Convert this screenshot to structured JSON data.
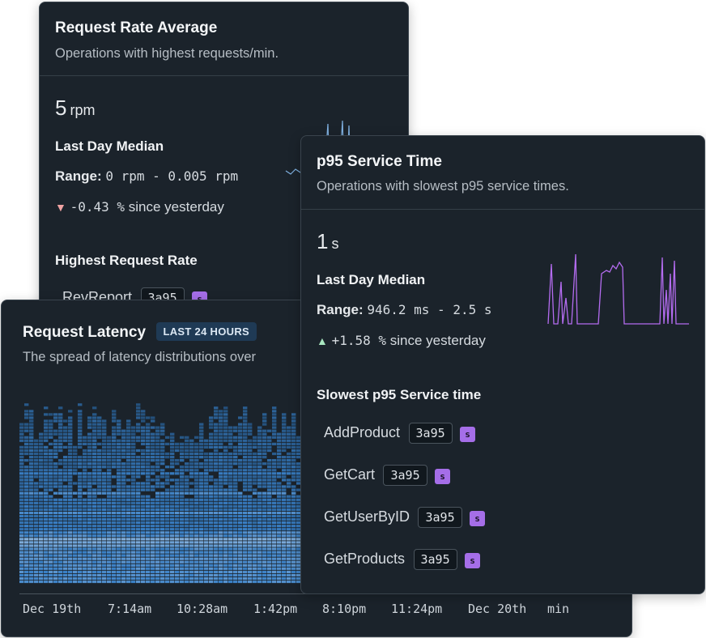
{
  "request_rate_card": {
    "title": "Request Rate Average",
    "subtitle": "Operations with highest requests/min.",
    "value": "5",
    "unit": "rpm",
    "median_label": "Last Day Median",
    "range_label": "Range:",
    "range_value": "0 rpm - 0.005 rpm",
    "delta_value": "-0.43 %",
    "delta_suffix": "since yesterday",
    "list_title": "Highest Request Rate",
    "items": [
      {
        "name": "RevReport",
        "hash": "3a95",
        "badge": "s"
      }
    ]
  },
  "latency_card": {
    "title": "Request Latency",
    "pill": "LAST 24 HOURS",
    "subtitle": "The spread of latency distributions over",
    "x_ticks": [
      "Dec 19th",
      "7:14am",
      "10:28am",
      "1:42pm",
      "8:10pm",
      "11:24pm",
      "Dec 20th",
      "min"
    ]
  },
  "p95_card": {
    "title": "p95 Service Time",
    "subtitle": "Operations with slowest p95 service times.",
    "value": "1",
    "unit": "s",
    "median_label": "Last Day Median",
    "range_label": "Range:",
    "range_value": "946.2 ms - 2.5 s",
    "delta_value": "+1.58 %",
    "delta_suffix": "since yesterday",
    "list_title": "Slowest p95 Service time",
    "items": [
      {
        "name": "AddProduct",
        "hash": "3a95",
        "badge": "s"
      },
      {
        "name": "GetCart",
        "hash": "3a95",
        "badge": "s"
      },
      {
        "name": "GetUserByID",
        "hash": "3a95",
        "badge": "s"
      },
      {
        "name": "GetProducts",
        "hash": "3a95",
        "badge": "s"
      }
    ]
  },
  "colors": {
    "card_bg": "#1b232b",
    "sparkline": "#b46cf0",
    "down": "#f0a3a3",
    "up": "#a8e6c0",
    "badge": "#a56ee8",
    "heat_low": "#2a4258",
    "heat_high": "#7fb3e6"
  }
}
